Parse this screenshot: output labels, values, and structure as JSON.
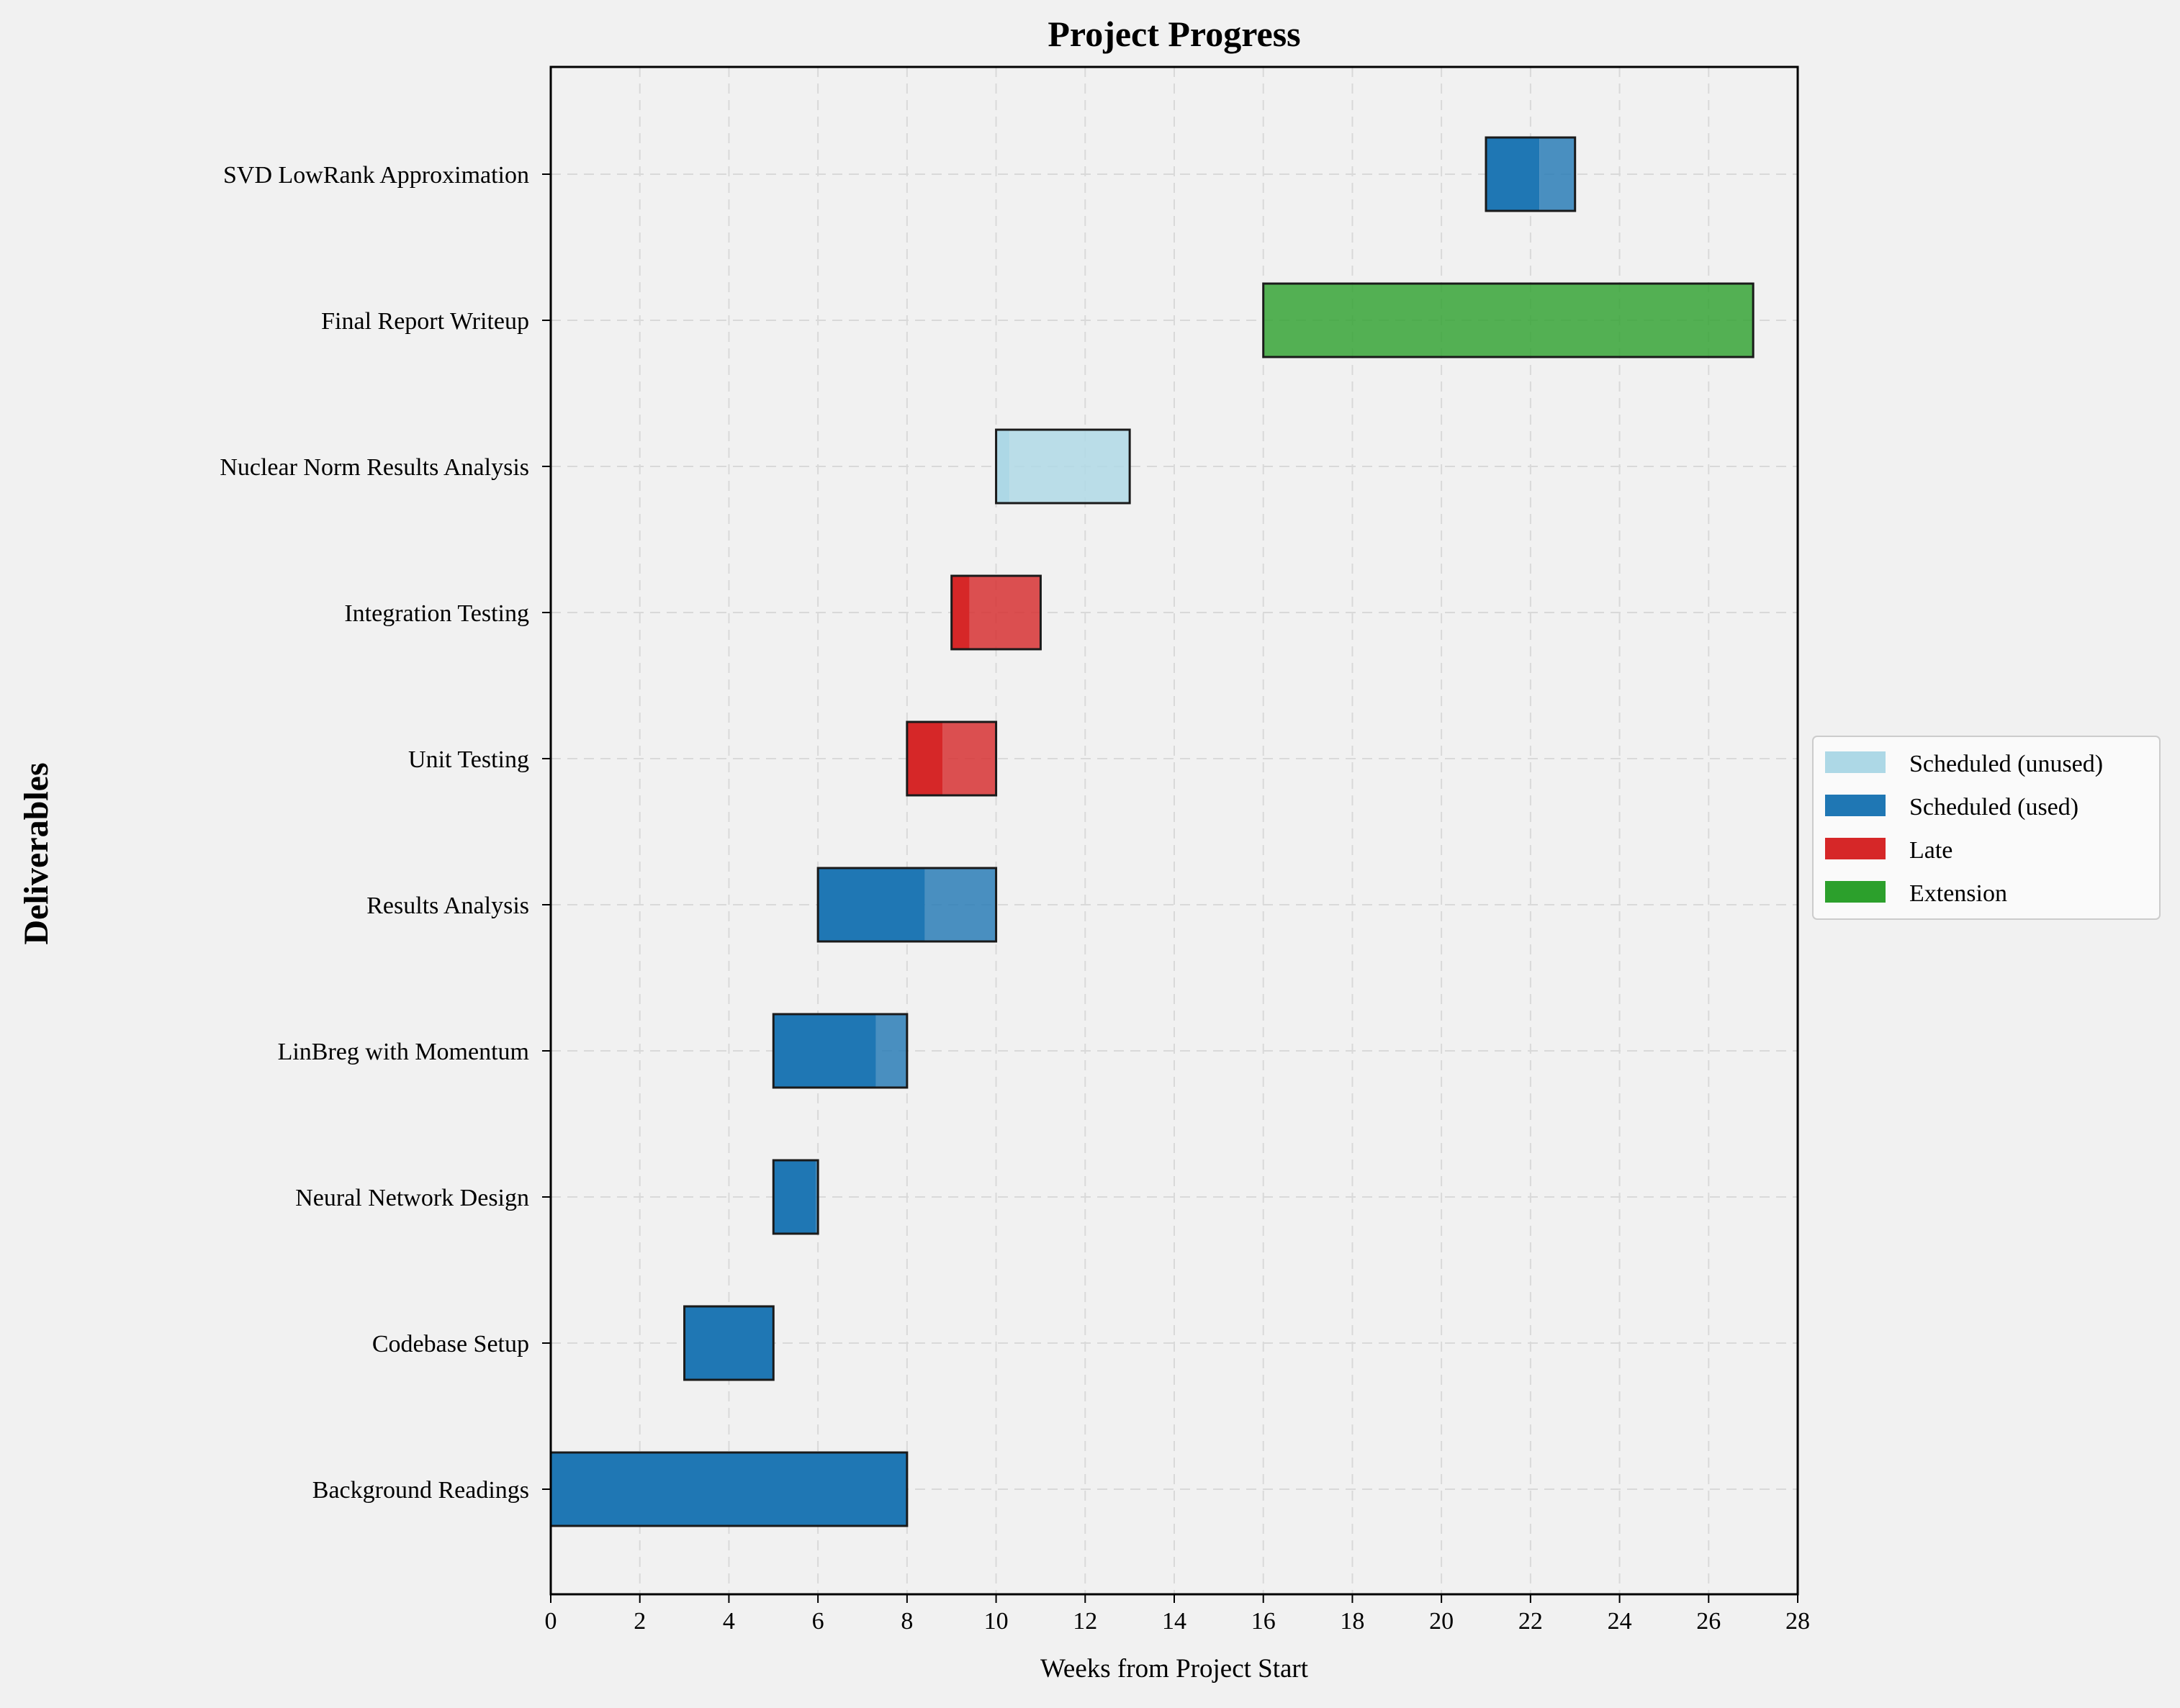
{
  "chart_data": {
    "type": "bar",
    "orientation": "horizontal",
    "title": "Project Progress",
    "xlabel": "Weeks from Project Start",
    "ylabel": "Deliverables",
    "xlim": [
      0,
      28
    ],
    "xticks": [
      0,
      2,
      4,
      6,
      8,
      10,
      12,
      14,
      16,
      18,
      20,
      22,
      24,
      26,
      28
    ],
    "grid": true,
    "legend_position": "right-center",
    "legend": [
      {
        "name": "Scheduled (unused)",
        "color": "#add8e6"
      },
      {
        "name": "Scheduled (used)",
        "color": "#1f77b4"
      },
      {
        "name": "Late",
        "color": "#d62728"
      },
      {
        "name": "Extension",
        "color": "#2ca02c"
      }
    ],
    "tasks": [
      {
        "name": "Background Readings",
        "start": 0,
        "end": 8,
        "progress_end": 8,
        "status": "Scheduled (used)"
      },
      {
        "name": "Codebase Setup",
        "start": 3,
        "end": 5,
        "progress_end": 5,
        "status": "Scheduled (used)"
      },
      {
        "name": "Neural Network Design",
        "start": 5,
        "end": 6,
        "progress_end": 5.95,
        "status": "Scheduled (used)"
      },
      {
        "name": "LinBreg with Momentum",
        "start": 5,
        "end": 8,
        "progress_end": 7.3,
        "status": "Scheduled (used)"
      },
      {
        "name": "Results Analysis",
        "start": 6,
        "end": 10,
        "progress_end": 8.4,
        "status": "Scheduled (used)"
      },
      {
        "name": "Unit Testing",
        "start": 8,
        "end": 10,
        "progress_end": 8.8,
        "status": "Late"
      },
      {
        "name": "Integration Testing",
        "start": 9,
        "end": 11,
        "progress_end": 9.4,
        "status": "Late"
      },
      {
        "name": "Nuclear Norm Results Analysis",
        "start": 10,
        "end": 13,
        "progress_end": 10.3,
        "status": "Scheduled (unused)"
      },
      {
        "name": "Final Report Writeup",
        "start": 16,
        "end": 27,
        "progress_end": 16,
        "status": "Extension"
      },
      {
        "name": "SVD LowRank Approximation",
        "start": 21,
        "end": 23,
        "progress_end": 22.2,
        "status": "Scheduled (used)"
      }
    ]
  }
}
